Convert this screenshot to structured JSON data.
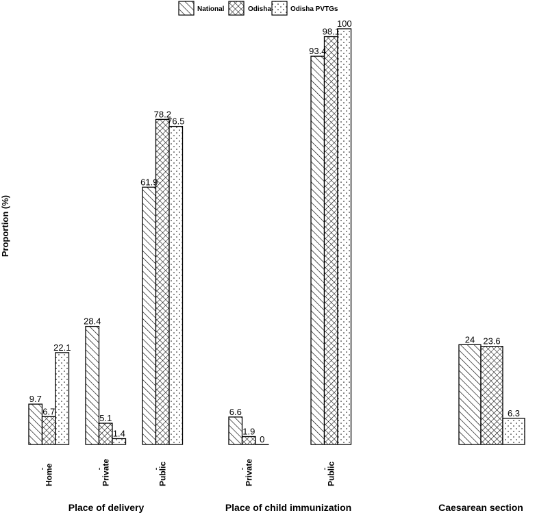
{
  "chart_data": {
    "type": "bar",
    "ylabel": "Proportion (%)",
    "xlabel": "",
    "ylim": [
      0,
      100
    ],
    "grid": false,
    "legend_position": "top-center",
    "series": [
      {
        "name": "National",
        "pattern": "diagonal-hatch"
      },
      {
        "name": "Odisha",
        "pattern": "cross-hatch"
      },
      {
        "name": "Odisha PVTGs",
        "pattern": "dots"
      }
    ],
    "groups": [
      {
        "label": "Place of delivery",
        "categories": [
          {
            "label": "Home",
            "values": [
              9.7,
              6.7,
              22.1
            ],
            "value_labels": [
              "9.7",
              "6.7",
              "22.1"
            ]
          },
          {
            "label": "Private",
            "values": [
              28.4,
              5.1,
              1.4
            ],
            "value_labels": [
              "28.4",
              "5.1",
              "1.4"
            ]
          },
          {
            "label": "Public",
            "values": [
              61.9,
              78.2,
              76.5
            ],
            "value_labels": [
              "61.9",
              "78.2",
              "76.5"
            ]
          }
        ]
      },
      {
        "label": "Place of child immunization",
        "categories": [
          {
            "label": "Private",
            "values": [
              6.6,
              1.9,
              0
            ],
            "value_labels": [
              "6.6",
              "1.9",
              "0"
            ]
          },
          {
            "label": "Public",
            "values": [
              93.4,
              98.1,
              100
            ],
            "value_labels": [
              "93.4",
              "98.1",
              "100"
            ]
          }
        ]
      },
      {
        "label": "Caesarean  section",
        "categories": [
          {
            "label": "",
            "values": [
              24,
              23.6,
              6.3
            ],
            "value_labels": [
              "24",
              "23.6",
              "6.3"
            ]
          }
        ]
      }
    ]
  }
}
